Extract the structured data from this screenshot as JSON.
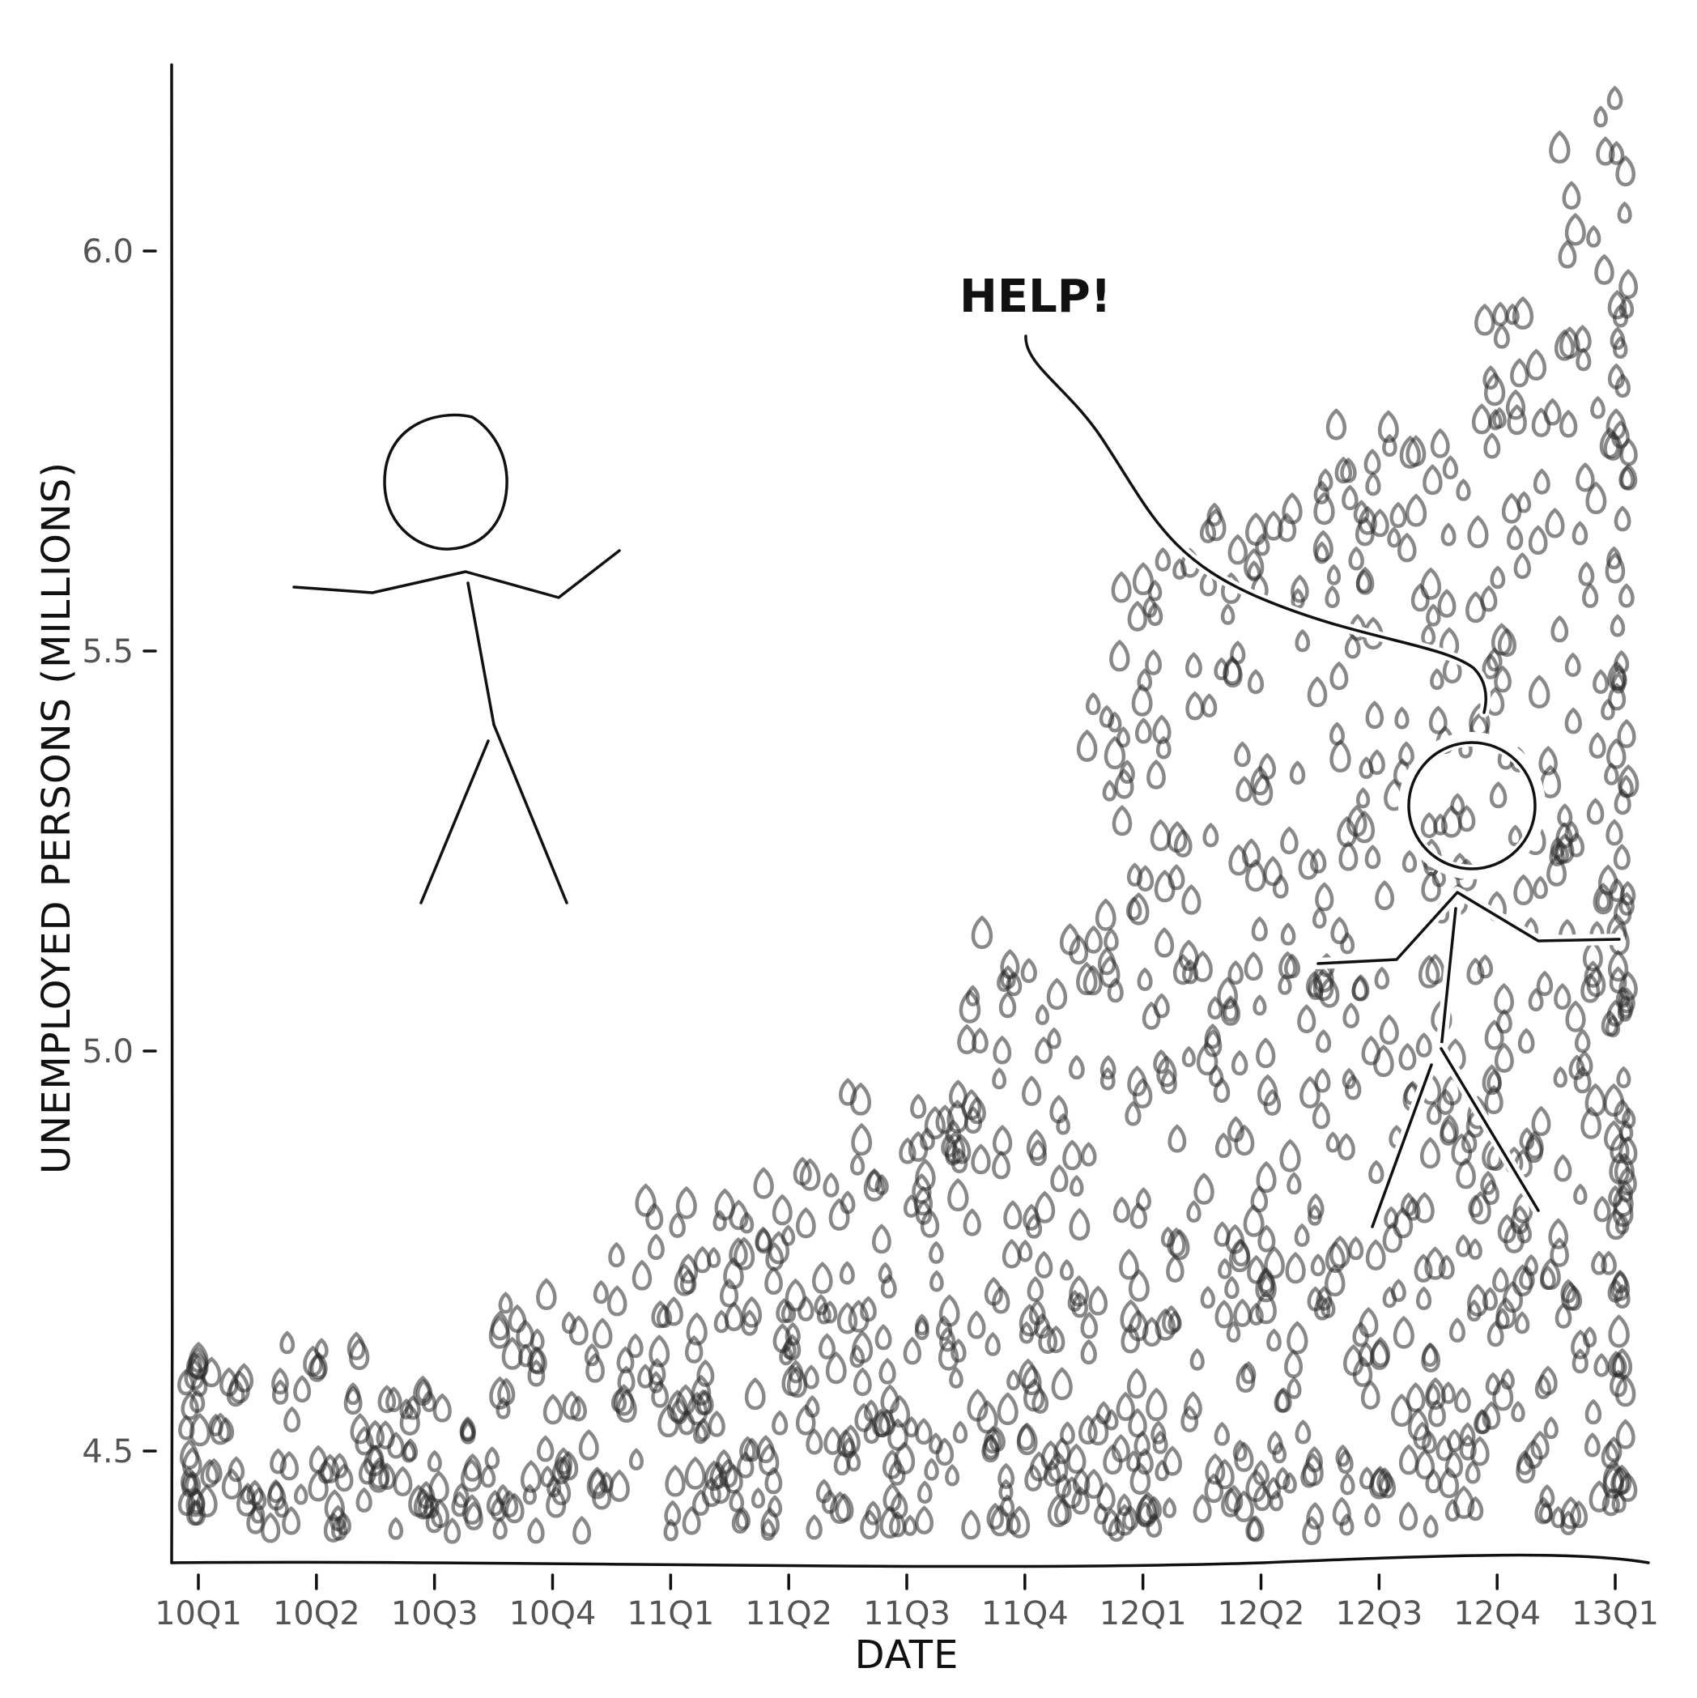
{
  "chart_data": {
    "type": "scatter",
    "title": "",
    "xlabel": "DATE",
    "ylabel": "UNEMPLOYED PERSONS (MILLIONS)",
    "x_ticks": [
      "10Q1",
      "10Q2",
      "10Q3",
      "10Q4",
      "11Q1",
      "11Q2",
      "11Q3",
      "11Q4",
      "12Q1",
      "12Q2",
      "12Q3",
      "12Q4",
      "13Q1"
    ],
    "y_ticks": [
      "4.5",
      "5.0",
      "5.5",
      "6.0"
    ],
    "y_tick_values": [
      4.5,
      5.0,
      5.5,
      6.0
    ],
    "ylim": [
      4.37,
      6.23
    ],
    "annotation": "HELP!",
    "style": "xkcd hand-drawn, teardrop markers",
    "series": [
      {
        "values_by_quarter": [
          {
            "x": "10Q1",
            "y_min": 4.4,
            "y_max": 4.62,
            "count": 38
          },
          {
            "x": "10Q2",
            "y_min": 4.4,
            "y_max": 4.64,
            "count": 40
          },
          {
            "x": "10Q3",
            "y_min": 4.4,
            "y_max": 4.58,
            "count": 40
          },
          {
            "x": "10Q4",
            "y_min": 4.4,
            "y_max": 4.7,
            "count": 48
          },
          {
            "x": "11Q1",
            "y_min": 4.4,
            "y_max": 4.82,
            "count": 60
          },
          {
            "x": "11Q2",
            "y_min": 4.4,
            "y_max": 4.85,
            "count": 70
          },
          {
            "x": "11Q3",
            "y_min": 4.4,
            "y_max": 4.95,
            "count": 80
          },
          {
            "x": "11Q4",
            "y_min": 4.4,
            "y_max": 5.15,
            "count": 95
          },
          {
            "x": "12Q1",
            "y_min": 4.4,
            "y_max": 5.63,
            "count": 120
          },
          {
            "x": "12Q2",
            "y_min": 4.4,
            "y_max": 5.68,
            "count": 135
          },
          {
            "x": "12Q3",
            "y_min": 4.4,
            "y_max": 5.8,
            "count": 145
          },
          {
            "x": "12Q4",
            "y_min": 4.4,
            "y_max": 5.95,
            "count": 155
          },
          {
            "x": "13Q1",
            "y_min": 4.4,
            "y_max": 6.2,
            "count": 165
          }
        ]
      }
    ]
  }
}
